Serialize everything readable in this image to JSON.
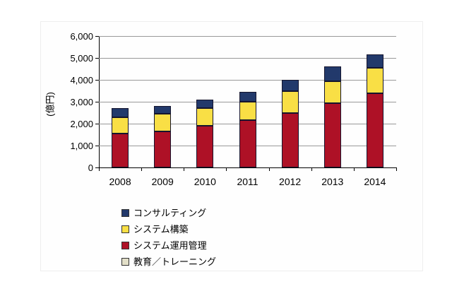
{
  "chart_data": {
    "type": "bar",
    "stacked": true,
    "categories": [
      "2008",
      "2009",
      "2010",
      "2011",
      "2012",
      "2013",
      "2014"
    ],
    "series": [
      {
        "name": "システム運用管理",
        "color": "#AE1126",
        "values": [
          1550,
          1650,
          1900,
          2150,
          2500,
          2950,
          3400
        ]
      },
      {
        "name": "システム構築",
        "color": "#F9DF45",
        "values": [
          750,
          800,
          800,
          850,
          1000,
          1000,
          1150
        ]
      },
      {
        "name": "コンサルティング",
        "color": "#22396B",
        "values": [
          400,
          350,
          400,
          450,
          500,
          650,
          600
        ]
      },
      {
        "name": "教育／トレーニング",
        "color": "#E2DFC8",
        "values": [
          0,
          0,
          0,
          0,
          0,
          0,
          0
        ],
        "note": "segment too small to be visible in chart"
      }
    ],
    "totals": [
      2700,
      2800,
      3100,
      3450,
      4000,
      4600,
      5150
    ],
    "title": "",
    "xlabel": "",
    "ylabel": "(億円)",
    "ylim": [
      0,
      6000
    ],
    "ytick_step": 1000,
    "yticks": [
      "0",
      "1,000",
      "2,000",
      "3,000",
      "4,000",
      "5,000",
      "6,000"
    ],
    "grid": true,
    "legend_position": "bottom-left",
    "legend": [
      {
        "label": "コンサルティング",
        "color": "#22396B"
      },
      {
        "label": "システム構築",
        "color": "#F9DF45"
      },
      {
        "label": "システム運用管理",
        "color": "#AE1126"
      },
      {
        "label": "教育／トレーニング",
        "color": "#E2DFC8"
      }
    ],
    "colors": {
      "gridline": "#999999",
      "axis": "#000000",
      "bar_border": "#15152E",
      "background": "#FFFFFF"
    }
  }
}
